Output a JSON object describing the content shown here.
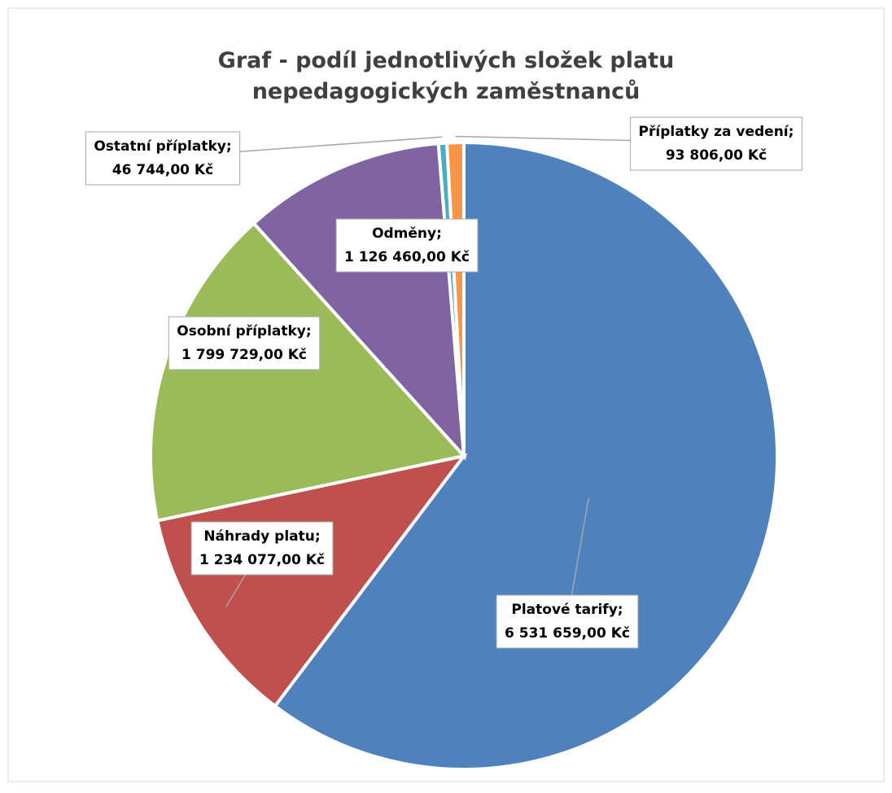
{
  "chart_data": {
    "type": "pie",
    "title": "Graf - podíl jednotlivých složek platu nepedagogických zaměstnanců",
    "categories": [
      "Platové tarify",
      "Náhrady platu",
      "Osobní příplatky",
      "Odměny",
      "Ostatní příplatky",
      "Příplatky za vedení"
    ],
    "values": [
      6531659,
      1234077,
      1799729,
      1126460,
      46744,
      93806
    ],
    "value_labels": [
      "6 531 659,00 Kč",
      "1 234 077,00 Kč",
      "1 799 729,00 Kč",
      "1 126 460,00 Kč",
      "46 744,00 Kč",
      "93 806,00 Kč"
    ],
    "label_separator": ";",
    "colors": [
      "#4f81bd",
      "#c0504d",
      "#9bbb59",
      "#8064a2",
      "#4bacc6",
      "#f79646"
    ]
  }
}
